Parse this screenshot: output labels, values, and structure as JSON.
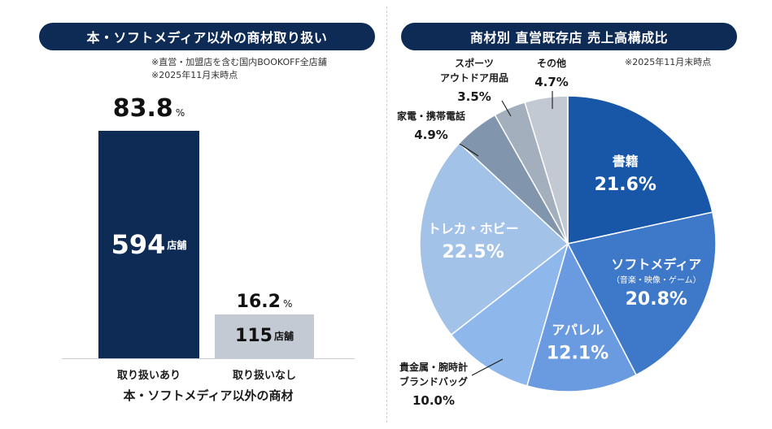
{
  "left": {
    "title": "本・ソフトメディア以外の商材取り扱い",
    "notes": [
      "※直営・加盟店を含む国内BOOKOFF全店舗",
      "※2025年11月末時点"
    ],
    "axis_title": "本・ソフトメディア以外の商材"
  },
  "right": {
    "title": "商材別 直営既存店 売上高構成比",
    "notes": [
      "※2025年11月末時点"
    ]
  },
  "chart_data": [
    {
      "type": "bar",
      "title": "本・ソフトメディア以外の商材取り扱い",
      "xlabel": "本・ソフトメディア以外の商材",
      "categories": [
        "取り扱いあり",
        "取り扱いなし"
      ],
      "values": [
        594,
        115
      ],
      "percent": [
        "83.8",
        "16.2"
      ],
      "value_texts": [
        "594",
        "115"
      ],
      "percent_unit": "%",
      "value_unit": "店舗",
      "colors": [
        "#0e2b55",
        "#c3cad4"
      ],
      "ylim": [
        0,
        594
      ]
    },
    {
      "type": "pie",
      "title": "商材別 直営既存店 売上高構成比",
      "slices": [
        {
          "name": "書籍",
          "sub": "",
          "value": 21.6,
          "label": "21.6%",
          "color": "#1857a7"
        },
        {
          "name": "ソフトメディア",
          "sub": "（音楽・映像・ゲーム）",
          "value": 20.8,
          "label": "20.8%",
          "color": "#3e78c9"
        },
        {
          "name": "アパレル",
          "sub": "",
          "value": 12.1,
          "label": "12.1%",
          "color": "#6a9be0"
        },
        {
          "name": "貴金属・腕時計",
          "sub": "ブランドバッグ",
          "value": 10.0,
          "label": "10.0%",
          "color": "#8eb7ec"
        },
        {
          "name": "トレカ・ホビー",
          "sub": "",
          "value": 22.5,
          "label": "22.5%",
          "color": "#a3c2e8"
        },
        {
          "name": "家電・携帯電話",
          "sub": "",
          "value": 4.9,
          "label": "4.9%",
          "color": "#8196ad"
        },
        {
          "name": "スポーツ",
          "sub": "アウトドア用品",
          "value": 3.5,
          "label": "3.5%",
          "color": "#a3afbd"
        },
        {
          "name": "その他",
          "sub": "",
          "value": 4.7,
          "label": "4.7%",
          "color": "#c3c9d2"
        }
      ]
    }
  ]
}
